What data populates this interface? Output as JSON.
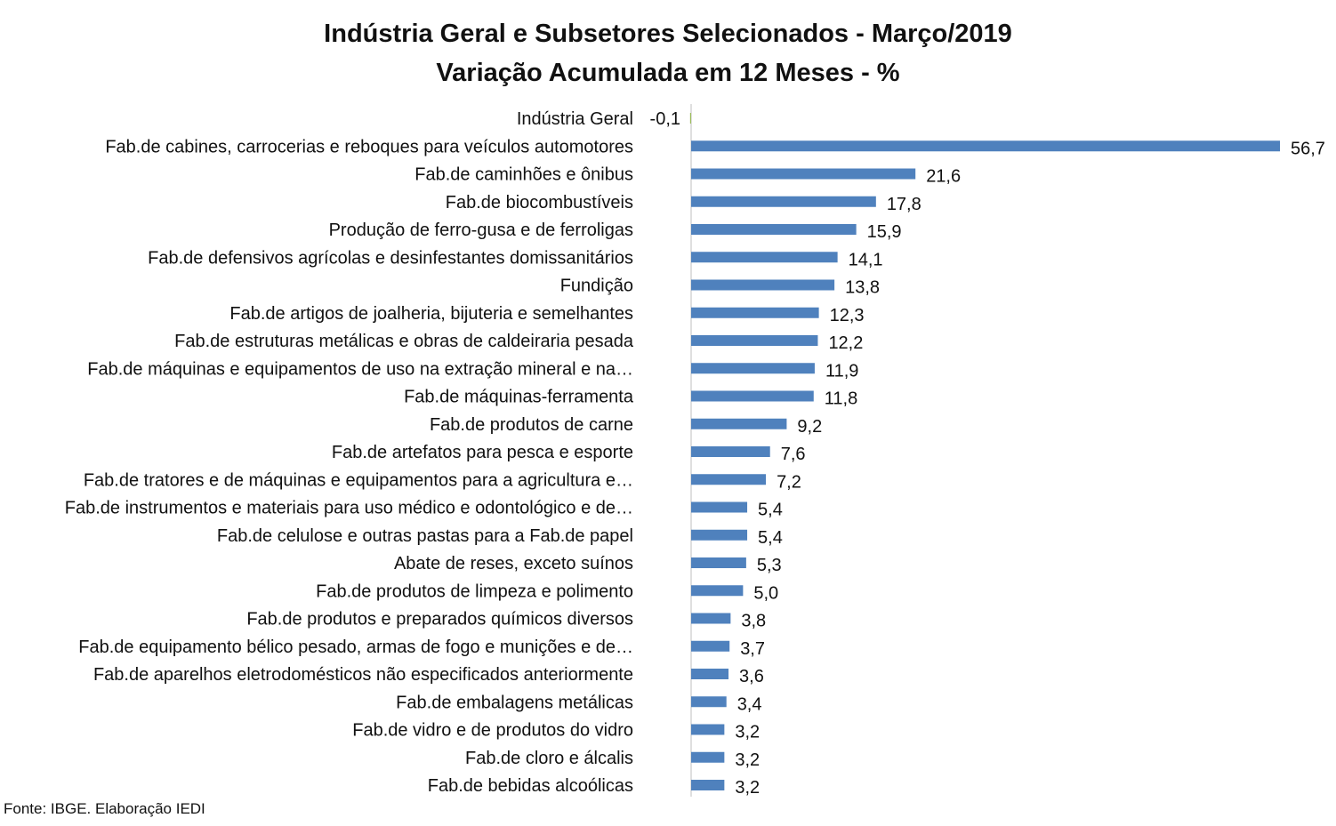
{
  "chart_data": {
    "type": "bar",
    "orientation": "horizontal",
    "title": "Indústria Geral e Subsetores Selecionados - Março/2019",
    "subtitle": "Variação Acumulada em 12 Meses - %",
    "source": "Fonte: IBGE. Elaboração IEDI",
    "bar_color": "#4f81bd",
    "negative_bar_color": "#9bbb59",
    "grid": false,
    "legend": "none",
    "categories": [
      "Indústria Geral",
      "Fab.de cabines, carrocerias e reboques para veículos automotores",
      "Fab.de caminhões e ônibus",
      "Fab.de biocombustíveis",
      "Produção de ferro-gusa e de ferroligas",
      "Fab.de defensivos agrícolas e desinfestantes domissanitários",
      "Fundição",
      "Fab.de artigos de joalheria, bijuteria e semelhantes",
      "Fab.de estruturas metálicas e obras de caldeiraria pesada",
      "Fab.de máquinas e equipamentos de uso na extração mineral e na…",
      "Fab.de máquinas-ferramenta",
      "Fab.de produtos de carne",
      "Fab.de artefatos para pesca e esporte",
      "Fab.de tratores e de máquinas e equipamentos para a agricultura e…",
      "Fab.de instrumentos e materiais para uso médico e odontológico e de…",
      "Fab.de celulose e outras pastas para a Fab.de papel",
      "Abate de reses, exceto suínos",
      "Fab.de produtos de limpeza e polimento",
      "Fab.de produtos e preparados químicos diversos",
      "Fab.de equipamento bélico pesado, armas de fogo e munições e de…",
      "Fab.de aparelhos eletrodomésticos não especificados anteriormente",
      "Fab.de embalagens metálicas",
      "Fab.de vidro e de produtos do vidro",
      "Fab.de cloro e álcalis",
      "Fab.de bebidas alcoólicas"
    ],
    "values": [
      -0.1,
      56.7,
      21.6,
      17.8,
      15.9,
      14.1,
      13.8,
      12.3,
      12.2,
      11.9,
      11.8,
      9.2,
      7.6,
      7.2,
      5.4,
      5.4,
      5.3,
      5.0,
      3.8,
      3.7,
      3.6,
      3.4,
      3.2,
      3.2,
      3.2
    ],
    "data_labels": [
      "-0,1",
      "56,7",
      "21,6",
      "17,8",
      "15,9",
      "14,1",
      "13,8",
      "12,3",
      "12,2",
      "11,9",
      "11,8",
      "9,2",
      "7,6",
      "7,2",
      "5,4",
      "5,4",
      "5,3",
      "5,0",
      "3,8",
      "3,7",
      "3,6",
      "3,4",
      "3,2",
      "3,2",
      "3,2"
    ]
  }
}
